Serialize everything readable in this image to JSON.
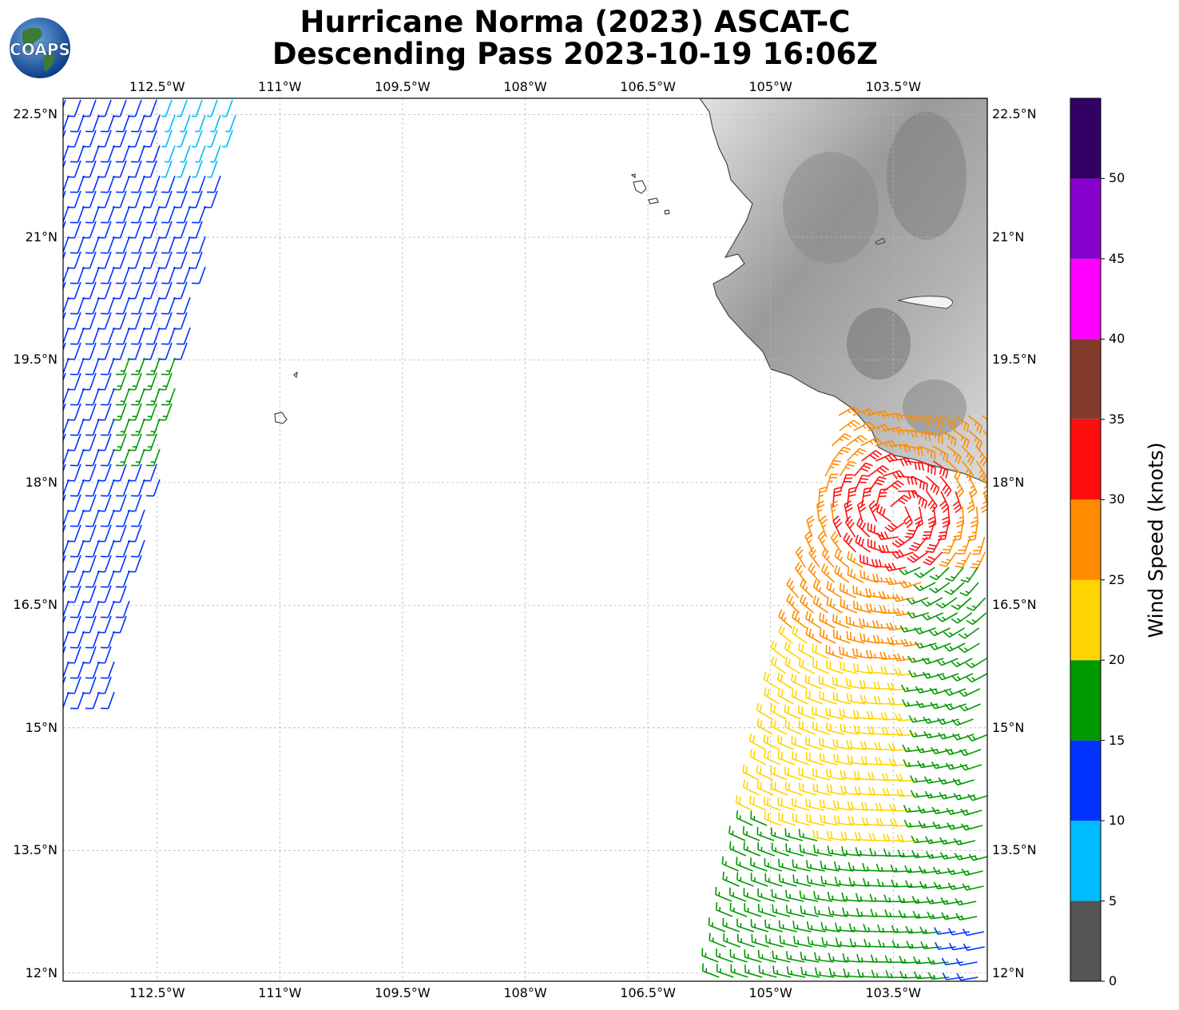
{
  "title_line1": "Hurricane Norma (2023) ASCAT-C",
  "title_line2": "Descending Pass 2023-10-19 16:06Z",
  "logo_text": "COAPS",
  "map": {
    "extent": {
      "lon_min": -113.65,
      "lon_max": -102.35,
      "lat_min": 11.9,
      "lat_max": 22.7
    },
    "lon_ticks": [
      {
        "value": -112.5,
        "label": "112.5°W"
      },
      {
        "value": -111,
        "label": "111°W"
      },
      {
        "value": -109.5,
        "label": "109.5°W"
      },
      {
        "value": -108,
        "label": "108°W"
      },
      {
        "value": -106.5,
        "label": "106.5°W"
      },
      {
        "value": -105,
        "label": "105°W"
      },
      {
        "value": -103.5,
        "label": "103.5°W"
      }
    ],
    "lat_ticks": [
      {
        "value": 22.5,
        "label": "22.5°N"
      },
      {
        "value": 21,
        "label": "21°N"
      },
      {
        "value": 19.5,
        "label": "19.5°N"
      },
      {
        "value": 18,
        "label": "18°N"
      },
      {
        "value": 16.5,
        "label": "16.5°N"
      },
      {
        "value": 15,
        "label": "15°N"
      },
      {
        "value": 13.5,
        "label": "13.5°N"
      },
      {
        "value": 12,
        "label": "12°N"
      }
    ]
  },
  "colorbar": {
    "title": "Wind Speed (knots)",
    "bins": [
      {
        "from": 0,
        "to": 5,
        "color": "#555555"
      },
      {
        "from": 5,
        "to": 10,
        "color": "#00bbff"
      },
      {
        "from": 10,
        "to": 15,
        "color": "#0033ff"
      },
      {
        "from": 15,
        "to": 20,
        "color": "#009900"
      },
      {
        "from": 20,
        "to": 25,
        "color": "#ffd400"
      },
      {
        "from": 25,
        "to": 30,
        "color": "#ff8c00"
      },
      {
        "from": 30,
        "to": 35,
        "color": "#ff0d0d"
      },
      {
        "from": 35,
        "to": 40,
        "color": "#833c2c"
      },
      {
        "from": 40,
        "to": 45,
        "color": "#ff00ff"
      },
      {
        "from": 45,
        "to": 50,
        "color": "#8800cc"
      },
      {
        "from": 50,
        "to": 55,
        "color": "#330066"
      }
    ],
    "tick_labels": [
      "0",
      "5",
      "10",
      "15",
      "20",
      "25",
      "30",
      "35",
      "40",
      "45",
      "50"
    ]
  }
}
